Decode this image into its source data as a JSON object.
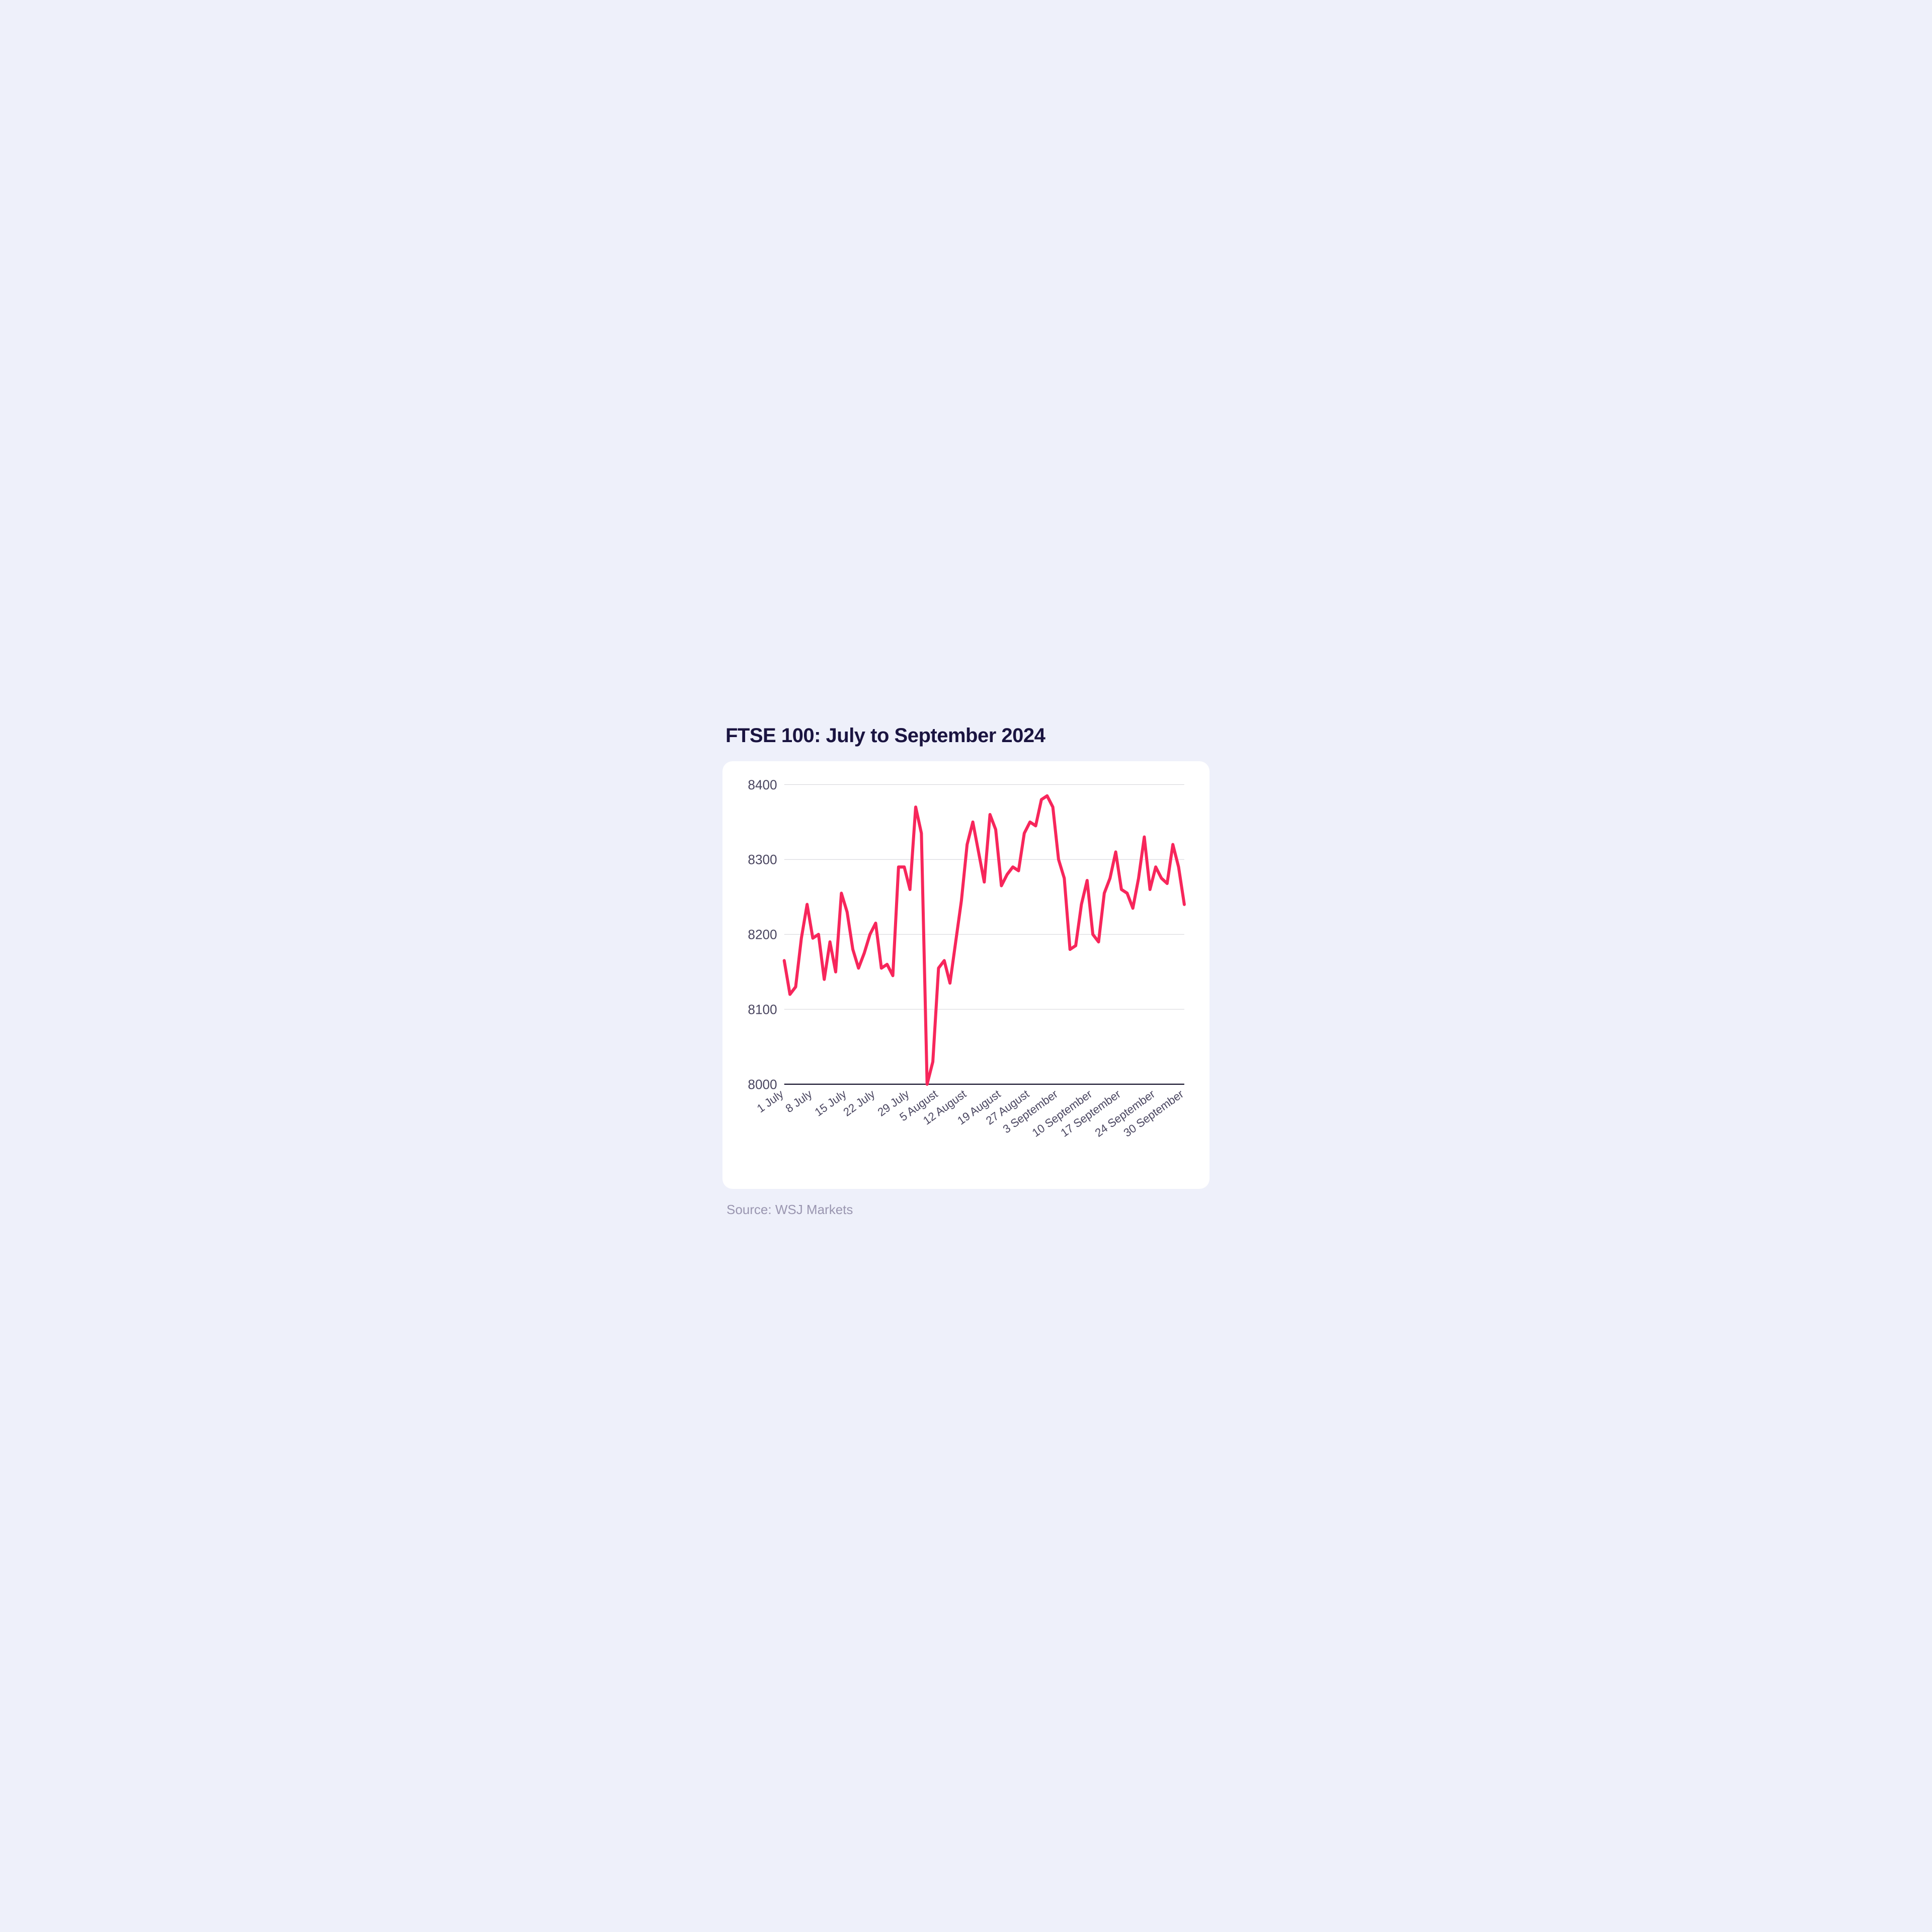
{
  "title": "FTSE 100: July to September  2024",
  "source_label": "Source: WSJ Markets",
  "chart": {
    "type": "line",
    "background_color": "#ffffff",
    "page_background_color": "#eef0fa",
    "title_color": "#1a1440",
    "title_fontsize": 40,
    "source_color": "#9a96b0",
    "source_fontsize": 26,
    "line_color": "#f7265b",
    "line_width": 6,
    "grid_color": "#d7d7dc",
    "axis_color": "#0e0b25",
    "tick_label_color": "#4a4660",
    "tick_fontsize_y": 26,
    "tick_fontsize_x": 22,
    "ylim": [
      8000,
      8400
    ],
    "ytick_step": 100,
    "y_ticks": [
      8000,
      8100,
      8200,
      8300,
      8400
    ],
    "x_labels": [
      "1 July",
      "8 July",
      "15 July",
      "22 July",
      "29 July",
      "5 August",
      "12 August",
      "19 August",
      "27 August",
      "3 September",
      "10 September",
      "17 September",
      "24 September",
      "30 September"
    ],
    "x_label_rotation_deg": -35,
    "values": [
      8165,
      8120,
      8130,
      8195,
      8240,
      8195,
      8200,
      8140,
      8190,
      8150,
      8255,
      8230,
      8180,
      8155,
      8175,
      8200,
      8215,
      8155,
      8160,
      8145,
      8290,
      8290,
      8260,
      8370,
      8335,
      8000,
      8030,
      8155,
      8165,
      8135,
      8190,
      8245,
      8320,
      8350,
      8310,
      8270,
      8360,
      8340,
      8265,
      8280,
      8290,
      8285,
      8335,
      8350,
      8345,
      8380,
      8385,
      8370,
      8300,
      8275,
      8180,
      8185,
      8240,
      8272,
      8200,
      8190,
      8255,
      8275,
      8310,
      8260,
      8255,
      8235,
      8275,
      8330,
      8260,
      8290,
      8275,
      8268,
      8320,
      8290,
      8240
    ]
  }
}
